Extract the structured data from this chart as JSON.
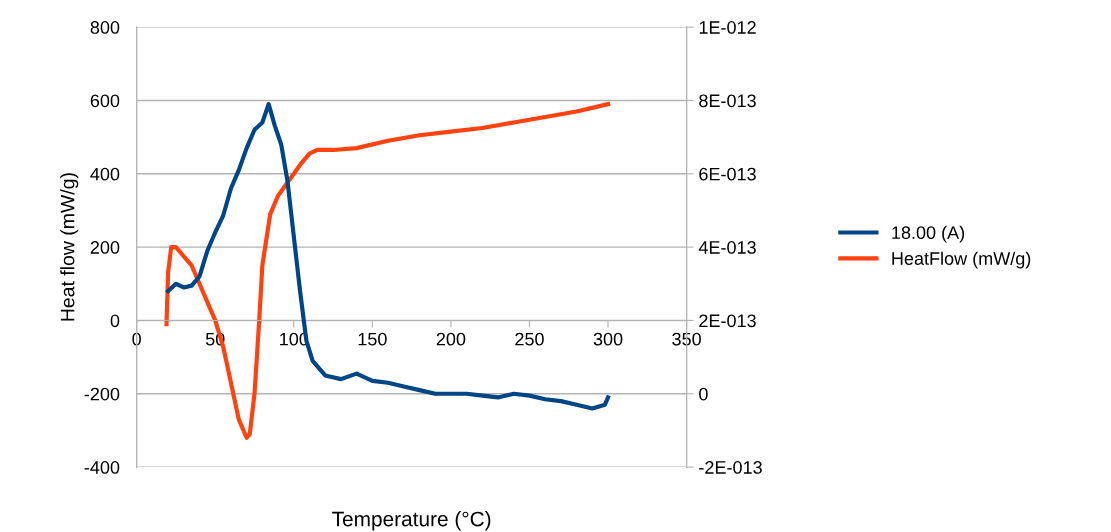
{
  "chart_data": {
    "type": "line",
    "xlabel": "Temperature (°C)",
    "ylabel": "Heat flow (mW/g)",
    "xlim": [
      0,
      350
    ],
    "xticks": [
      0,
      50,
      100,
      150,
      200,
      250,
      300,
      350
    ],
    "ylim": [
      -400,
      800
    ],
    "yticks": [
      -400,
      -200,
      0,
      200,
      400,
      600,
      800
    ],
    "y2lim": [
      -2e-13,
      1e-12
    ],
    "y2ticks": [
      {
        "value": -2e-13,
        "label": "-2E-013"
      },
      0,
      {
        "value": 2e-13,
        "label": "2E-013"
      },
      {
        "value": 4e-13,
        "label": "4E-013"
      },
      {
        "value": 6e-13,
        "label": "6E-013"
      },
      {
        "value": 8e-13,
        "label": "8E-013"
      },
      {
        "value": 1e-12,
        "label": "1E-012"
      }
    ],
    "grid": "y",
    "legend": "right",
    "marker": "none",
    "line_style": "solid",
    "series": [
      {
        "name": "18.00 (A)",
        "color": "#004586",
        "axis": "y2",
        "x": [
          20,
          25,
          30,
          35,
          40,
          45,
          50,
          55,
          60,
          65,
          70,
          75,
          80,
          84,
          88,
          92,
          96,
          100,
          104,
          108,
          112,
          120,
          130,
          140,
          150,
          160,
          170,
          180,
          190,
          200,
          210,
          220,
          230,
          240,
          250,
          260,
          270,
          280,
          290,
          298,
          300
        ],
        "values": [
          2.8e-13,
          3e-13,
          2.9e-13,
          2.95e-13,
          3.2e-13,
          3.9e-13,
          4.4e-13,
          4.85e-13,
          5.6e-13,
          6.1e-13,
          6.7e-13,
          7.2e-13,
          7.4e-13,
          7.9e-13,
          7.3e-13,
          6.8e-13,
          5.8e-13,
          4.3e-13,
          2.8e-13,
          1.45e-13,
          9e-14,
          5e-14,
          4e-14,
          5.5e-14,
          3.5e-14,
          3e-14,
          2e-14,
          1e-14,
          0.0,
          0.0,
          0.0,
          -5e-15,
          -1e-14,
          0.0,
          -5e-15,
          -1.5e-14,
          -2e-14,
          -3e-14,
          -4e-14,
          -3e-14,
          -1e-14
        ]
      },
      {
        "name": "HeatFlow (mW/g)",
        "color": "#ff420e",
        "axis": "y",
        "x": [
          19,
          20,
          22,
          25,
          30,
          35,
          40,
          45,
          50,
          55,
          60,
          65,
          70,
          72,
          75,
          78,
          80,
          85,
          90,
          95,
          100,
          105,
          110,
          115,
          125,
          140,
          160,
          180,
          200,
          220,
          240,
          260,
          280,
          300
        ],
        "values": [
          -10,
          130,
          200,
          200,
          175,
          150,
          100,
          50,
          0,
          -70,
          -170,
          -270,
          -320,
          -310,
          -200,
          0,
          150,
          290,
          340,
          370,
          400,
          430,
          455,
          465,
          465,
          470,
          490,
          505,
          515,
          525,
          540,
          555,
          570,
          590
        ]
      }
    ]
  }
}
